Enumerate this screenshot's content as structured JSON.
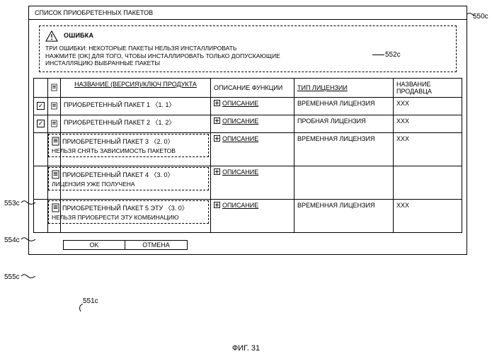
{
  "window": {
    "title": "СПИСОК ПРИОБРЕТЕННЫХ ПАКЕТОВ"
  },
  "error": {
    "title": "ОШИБКА",
    "body_line1": "ТРИ ОШИБКИ: НЕКОТОРЫЕ ПАКЕТЫ НЕЛЬЗЯ ИНСТАЛЛИРОВАТЬ",
    "body_line2": "НАЖМИТЕ [OK] ДЛЯ ТОГО, ЧТОБЫ ИНСТАЛЛИРОВАТЬ ТОЛЬКО ДОПУСКАЮЩИЕ",
    "body_line3": "ИНСТАЛЛЯЦИЮ ВЫБРАННЫЕ ПАКЕТЫ"
  },
  "columns": {
    "name": "НАЗВАНИЕ (ВЕРСИЯ)/КЛЮЧ ПРОДУКТА",
    "desc": "ОПИСАНИЕ ФУНКЦИИ",
    "license": "ТИП ЛИЦЕНЗИИ",
    "vendor": "НАЗВАНИЕ ПРОДАВЦА"
  },
  "rows": [
    {
      "checked": true,
      "name": "ПРИОБРЕТЕННЫЙ ПАКЕТ 1  〈1. 1〉",
      "desc": "ОПИСАНИЕ",
      "license": "ВРЕМЕННАЯ ЛИЦЕНЗИЯ",
      "vendor": "XXX",
      "dashed": false,
      "note": ""
    },
    {
      "checked": true,
      "name": "ПРИОБРЕТЕННЫЙ ПАКЕТ 2  〈1. 2〉",
      "desc": "ОПИСАНИЕ",
      "license": "ПРОБНАЯ ЛИЦЕНЗИЯ",
      "vendor": "XXX",
      "dashed": false,
      "note": ""
    },
    {
      "checked": false,
      "name": "ПРИОБРЕТЕННЫЙ ПАКЕТ 3  〈2. 0〉",
      "desc": "ОПИСАНИЕ",
      "license": "ВРЕМЕННАЯ ЛИЦЕНЗИЯ",
      "vendor": "XXX",
      "dashed": true,
      "note": "НЕЛЬЗЯ СНЯТЬ ЗАВИСИМОСТЬ ПАКЕТОВ"
    },
    {
      "checked": false,
      "name": "ПРИОБРЕТЕННЫЙ ПАКЕТ 4  〈3. 0〉",
      "desc": "ОПИСАНИЕ",
      "license": "",
      "vendor": "",
      "dashed": true,
      "note": "ЛИЦЕНЗИЯ УЖЕ ПОЛУЧЕНА"
    },
    {
      "checked": false,
      "name": "ПРИОБРЕТЕННЫЙ ПАКЕТ 5 ЭТУ  〈3. 0〉",
      "desc": "ОПИСАНИЕ",
      "license": "ВРЕМЕННАЯ ЛИЦЕНЗИЯ",
      "vendor": "XXX",
      "dashed": true,
      "note": "НЕЛЬЗЯ ПРИОБРЕСТИ ЭТУ КОМБИНАЦИЮ"
    }
  ],
  "buttons": {
    "ok": "OK",
    "cancel": "ОТМЕНА"
  },
  "callouts": {
    "c550c": "550с",
    "c552c": "552с",
    "c553c": "553с",
    "c554c": "554с",
    "c555c": "555с",
    "c551c": "551с"
  },
  "figure_caption": "ФИГ. 31",
  "colors": {
    "stroke": "#000000",
    "bg": "#ffffff"
  }
}
